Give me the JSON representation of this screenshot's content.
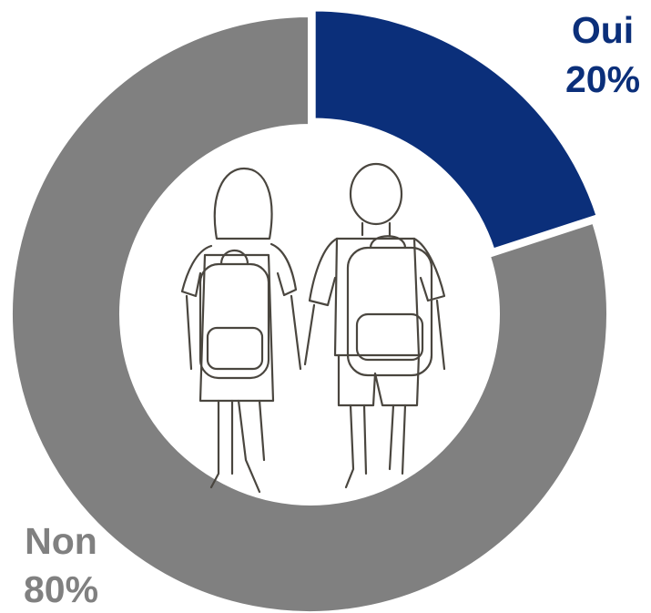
{
  "chart_data": {
    "type": "donut",
    "categories": [
      "Oui",
      "Non"
    ],
    "values": [
      20,
      80
    ],
    "value_labels": [
      "20%",
      "80%"
    ],
    "colors": [
      "#0b2f7a",
      "#808080"
    ]
  }
}
